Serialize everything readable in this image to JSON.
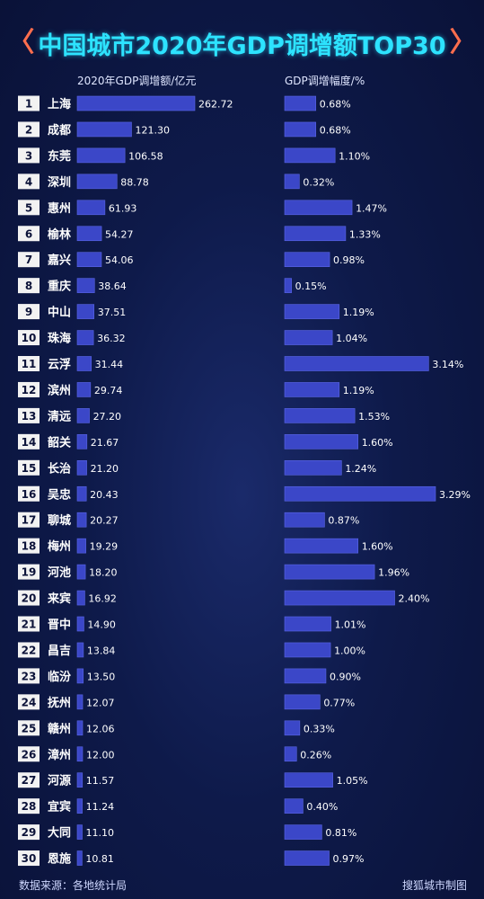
{
  "title": "中国城市2020年GDP调增额TOP30",
  "title_chevrons": {
    "left": "〈",
    "right": "〉"
  },
  "colors": {
    "title": "#2de3ff",
    "chevron": "#ff6e4e",
    "bar": "#3b47c8",
    "bar_edge": "#5a66e6",
    "rank_bg": "#f2f2f2",
    "rank_text": "#0b1238",
    "text": "#ffffff"
  },
  "footer": {
    "source": "数据来源：各地统计局",
    "credit": "搜狐城市制图"
  },
  "chart_data": [
    {
      "type": "bar",
      "orientation": "horizontal",
      "column_header": "2020年GDP调增额/亿元",
      "categories": [
        "上海",
        "成都",
        "东莞",
        "深圳",
        "惠州",
        "榆林",
        "嘉兴",
        "重庆",
        "中山",
        "珠海",
        "云浮",
        "滨州",
        "清远",
        "韶关",
        "长治",
        "吴忠",
        "聊城",
        "梅州",
        "河池",
        "来宾",
        "晋中",
        "昌吉",
        "临汾",
        "抚州",
        "赣州",
        "漳州",
        "河源",
        "宜宾",
        "大同",
        "恩施"
      ],
      "ranks": [
        "1",
        "2",
        "3",
        "4",
        "5",
        "6",
        "7",
        "8",
        "9",
        "10",
        "11",
        "12",
        "13",
        "14",
        "15",
        "16",
        "17",
        "18",
        "19",
        "20",
        "21",
        "22",
        "23",
        "24",
        "25",
        "26",
        "27",
        "28",
        "29",
        "30"
      ],
      "values": [
        262.72,
        121.3,
        106.58,
        88.78,
        61.93,
        54.27,
        54.06,
        38.64,
        37.51,
        36.32,
        31.44,
        29.74,
        27.2,
        21.67,
        21.2,
        20.43,
        20.27,
        19.29,
        18.2,
        16.92,
        14.9,
        13.84,
        13.5,
        12.07,
        12.06,
        12.0,
        11.57,
        11.24,
        11.1,
        10.81
      ],
      "value_labels": [
        "262.72",
        "121.30",
        "106.58",
        "88.78",
        "61.93",
        "54.27",
        "54.06",
        "38.64",
        "37.51",
        "36.32",
        "31.44",
        "29.74",
        "27.20",
        "21.67",
        "21.20",
        "20.43",
        "20.27",
        "19.29",
        "18.20",
        "16.92",
        "14.90",
        "13.84",
        "13.50",
        "12.07",
        "12.06",
        "12.00",
        "11.57",
        "11.24",
        "11.10",
        "10.81"
      ]
    },
    {
      "type": "bar",
      "orientation": "horizontal",
      "column_header": "GDP调增幅度/%",
      "categories": [
        "上海",
        "成都",
        "东莞",
        "深圳",
        "惠州",
        "榆林",
        "嘉兴",
        "重庆",
        "中山",
        "珠海",
        "云浮",
        "滨州",
        "清远",
        "韶关",
        "长治",
        "吴忠",
        "聊城",
        "梅州",
        "河池",
        "来宾",
        "晋中",
        "昌吉",
        "临汾",
        "抚州",
        "赣州",
        "漳州",
        "河源",
        "宜宾",
        "大同",
        "恩施"
      ],
      "values": [
        0.68,
        0.68,
        1.1,
        0.32,
        1.47,
        1.33,
        0.98,
        0.15,
        1.19,
        1.04,
        3.14,
        1.19,
        1.53,
        1.6,
        1.24,
        3.29,
        0.87,
        1.6,
        1.96,
        2.4,
        1.01,
        1.0,
        0.9,
        0.77,
        0.33,
        0.26,
        1.05,
        0.4,
        0.81,
        0.97
      ],
      "value_labels": [
        "0.68%",
        "0.68%",
        "1.10%",
        "0.32%",
        "1.47%",
        "1.33%",
        "0.98%",
        "0.15%",
        "1.19%",
        "1.04%",
        "3.14%",
        "1.19%",
        "1.53%",
        "1.60%",
        "1.24%",
        "3.29%",
        "0.87%",
        "1.60%",
        "1.96%",
        "2.40%",
        "1.01%",
        "1.00%",
        "0.90%",
        "0.77%",
        "0.33%",
        "0.26%",
        "1.05%",
        "0.40%",
        "0.81%",
        "0.97%"
      ]
    }
  ]
}
